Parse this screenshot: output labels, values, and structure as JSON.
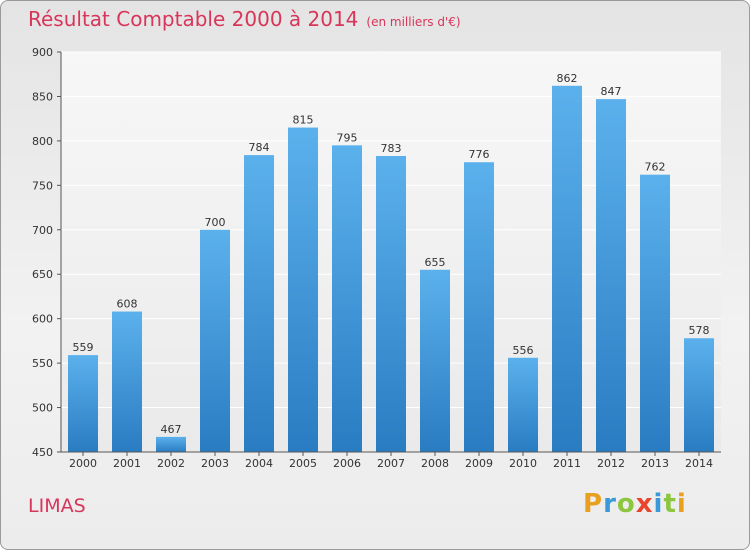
{
  "chart_data": {
    "type": "bar",
    "title": "Résultat Comptable 2000 à 2014",
    "subtitle": "(en milliers d'€)",
    "categories": [
      "2000",
      "2001",
      "2002",
      "2003",
      "2004",
      "2005",
      "2006",
      "2007",
      "2008",
      "2009",
      "2010",
      "2011",
      "2012",
      "2013",
      "2014"
    ],
    "values": [
      559,
      608,
      467,
      700,
      784,
      815,
      795,
      783,
      655,
      776,
      556,
      862,
      847,
      762,
      578
    ],
    "ylim": [
      450,
      900
    ],
    "yticks": [
      450,
      500,
      550,
      600,
      650,
      700,
      750,
      800,
      850,
      900
    ],
    "grid": true,
    "xlabel": "",
    "ylabel": "",
    "bar_color": "#3b8fd8"
  },
  "footer": {
    "commune": "LIMAS",
    "logo_letters": [
      "P",
      "r",
      "o",
      "x",
      "i",
      "t",
      "i"
    ],
    "logo_colors": [
      "#e8a020",
      "#3a9ad9",
      "#8cc63f",
      "#e8452c",
      "#3a9ad9",
      "#8cc63f",
      "#e8a020"
    ]
  }
}
